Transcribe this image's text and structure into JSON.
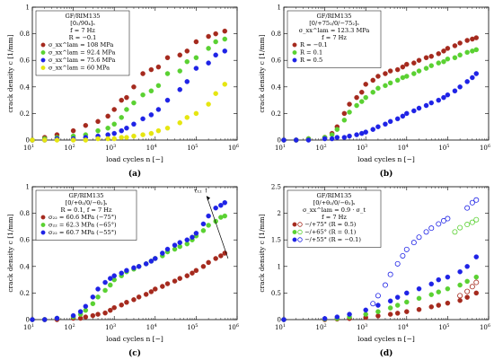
{
  "figure": {
    "xlabel_symbol": "load cycles n",
    "xlabel_unit": "[−]",
    "ylabel_symbol": "crack density c",
    "ylabel_unit": "[1/mm]"
  },
  "chart_data": [
    {
      "id": "a",
      "type": "scatter",
      "caption": "(a)",
      "xscale": "log",
      "xlim": [
        10,
        1000000
      ],
      "xticks": [
        "10^1",
        "10^2",
        "10^3",
        "10^4",
        "10^5",
        "10^6"
      ],
      "ylim": [
        0,
        1
      ],
      "yticks": [
        "0",
        "0.2",
        "0.4",
        "0.6",
        "0.8",
        "1"
      ],
      "grid": false,
      "legend_placement": "top-left",
      "legend_title": [
        "GF/RIM135",
        "[0₂/90₄]ₛ",
        "f = 7 Hz",
        "R = −0.1"
      ],
      "legend_items": [
        "σ_xx^lam = 108 MPa",
        "σ_xx^lam = 92.4 MPa",
        "σ_xx^lam = 75.6 MPa",
        "σ_xx^lam = 60 MPa"
      ],
      "series": [
        {
          "name": "σ_xx^lam = 108 MPa",
          "color": "#a52a1e",
          "filled": true,
          "x": [
            10,
            20,
            40,
            100,
            200,
            400,
            700,
            1000,
            1500,
            2000,
            3000,
            5000,
            8000,
            12000,
            20000,
            40000,
            60000,
            100000,
            200000,
            300000,
            500000
          ],
          "y": [
            0,
            0.02,
            0.04,
            0.07,
            0.11,
            0.14,
            0.18,
            0.23,
            0.3,
            0.32,
            0.4,
            0.5,
            0.53,
            0.55,
            0.62,
            0.64,
            0.67,
            0.74,
            0.78,
            0.8,
            0.82
          ]
        },
        {
          "name": "σ_xx^lam = 92.4 MPa",
          "color": "#5ad132",
          "filled": true,
          "x": [
            10,
            20,
            40,
            100,
            200,
            400,
            700,
            1000,
            1500,
            2000,
            3000,
            5000,
            8000,
            12000,
            20000,
            40000,
            60000,
            100000,
            200000,
            300000,
            500000
          ],
          "y": [
            0,
            0.01,
            0.02,
            0.03,
            0.04,
            0.07,
            0.09,
            0.12,
            0.17,
            0.23,
            0.28,
            0.34,
            0.37,
            0.41,
            0.5,
            0.52,
            0.59,
            0.62,
            0.69,
            0.74,
            0.76
          ]
        },
        {
          "name": "σ_xx^lam = 75.6 MPa",
          "color": "#1f23e6",
          "filled": true,
          "x": [
            10,
            20,
            40,
            100,
            200,
            400,
            700,
            1000,
            1500,
            2000,
            3000,
            5000,
            8000,
            12000,
            20000,
            40000,
            60000,
            100000,
            200000,
            300000,
            500000
          ],
          "y": [
            0,
            0,
            0.01,
            0.01,
            0.02,
            0.03,
            0.04,
            0.05,
            0.07,
            0.09,
            0.12,
            0.16,
            0.19,
            0.23,
            0.3,
            0.38,
            0.44,
            0.54,
            0.58,
            0.64,
            0.67
          ]
        },
        {
          "name": "σ_xx^lam = 60 MPa",
          "color": "#e6e610",
          "filled": true,
          "x": [
            10,
            20,
            40,
            100,
            200,
            400,
            700,
            1000,
            1500,
            2000,
            3000,
            5000,
            8000,
            12000,
            20000,
            40000,
            60000,
            100000,
            200000,
            300000,
            500000
          ],
          "y": [
            0,
            0,
            0,
            0,
            0,
            0.01,
            0.01,
            0.01,
            0.02,
            0.02,
            0.03,
            0.04,
            0.05,
            0.07,
            0.09,
            0.13,
            0.17,
            0.2,
            0.27,
            0.35,
            0.42
          ]
        }
      ]
    },
    {
      "id": "b",
      "type": "scatter",
      "caption": "(b)",
      "xscale": "log",
      "xlim": [
        10,
        1000000
      ],
      "xticks": [
        "10^1",
        "10^2",
        "10^3",
        "10^4",
        "10^5",
        "10^6"
      ],
      "ylim": [
        0,
        1
      ],
      "yticks": [
        "0",
        "0.2",
        "0.4",
        "0.6",
        "0.8",
        "1"
      ],
      "grid": false,
      "legend_placement": "top-left",
      "legend_title": [
        "GF/RIM135",
        "[0/+75₂/0/−75₂]ₛ",
        "σ_xx^lam = 123.3 MPa",
        "f = 7 Hz"
      ],
      "legend_items": [
        "R = −0.1",
        "R = 0.1",
        "R = 0.5"
      ],
      "series": [
        {
          "name": "R = −0.1",
          "color": "#a52a1e",
          "filled": true,
          "x": [
            10,
            20,
            40,
            100,
            150,
            200,
            300,
            400,
            600,
            800,
            1000,
            1500,
            2000,
            3000,
            4000,
            6000,
            8000,
            10000,
            15000,
            20000,
            30000,
            40000,
            60000,
            80000,
            100000,
            150000,
            200000,
            300000,
            400000,
            500000
          ],
          "y": [
            0,
            0,
            0.01,
            0.02,
            0.05,
            0.1,
            0.2,
            0.27,
            0.32,
            0.36,
            0.42,
            0.45,
            0.48,
            0.5,
            0.52,
            0.53,
            0.55,
            0.57,
            0.58,
            0.6,
            0.62,
            0.63,
            0.65,
            0.67,
            0.69,
            0.71,
            0.73,
            0.75,
            0.76,
            0.77
          ]
        },
        {
          "name": "R = 0.1",
          "color": "#5ad132",
          "filled": true,
          "x": [
            10,
            20,
            40,
            100,
            150,
            200,
            300,
            400,
            600,
            800,
            1000,
            1500,
            2000,
            3000,
            4000,
            6000,
            8000,
            10000,
            15000,
            20000,
            30000,
            40000,
            60000,
            80000,
            100000,
            150000,
            200000,
            300000,
            400000,
            500000
          ],
          "y": [
            0,
            0,
            0.01,
            0.02,
            0.04,
            0.08,
            0.15,
            0.21,
            0.26,
            0.29,
            0.32,
            0.36,
            0.39,
            0.41,
            0.43,
            0.45,
            0.47,
            0.48,
            0.5,
            0.52,
            0.54,
            0.56,
            0.58,
            0.59,
            0.61,
            0.62,
            0.64,
            0.66,
            0.67,
            0.68
          ]
        },
        {
          "name": "R = 0.5",
          "color": "#1f23e6",
          "filled": true,
          "x": [
            10,
            20,
            40,
            100,
            150,
            200,
            300,
            400,
            600,
            800,
            1000,
            1500,
            2000,
            3000,
            4000,
            6000,
            8000,
            10000,
            15000,
            20000,
            30000,
            40000,
            60000,
            80000,
            100000,
            150000,
            200000,
            300000,
            400000,
            500000
          ],
          "y": [
            0,
            0,
            0,
            0.01,
            0.01,
            0.02,
            0.02,
            0.03,
            0.04,
            0.05,
            0.06,
            0.08,
            0.1,
            0.12,
            0.14,
            0.16,
            0.18,
            0.2,
            0.22,
            0.24,
            0.26,
            0.28,
            0.3,
            0.32,
            0.34,
            0.37,
            0.4,
            0.44,
            0.47,
            0.5
          ]
        }
      ]
    },
    {
      "id": "c",
      "type": "scatter",
      "caption": "(c)",
      "xscale": "log",
      "xlim": [
        10,
        1000000
      ],
      "xticks": [
        "10^1",
        "10^2",
        "10^3",
        "10^4",
        "10^5",
        "10^6"
      ],
      "ylim": [
        0,
        1
      ],
      "yticks": [
        "0",
        "0.2",
        "0.4",
        "0.6",
        "0.8",
        "1"
      ],
      "grid": false,
      "legend_placement": "top-left",
      "legend_title": [
        "GF/RIM135",
        "[0/+θ₂/0/−θ₂]ₛ",
        "R = 0.1, f = 7 Hz"
      ],
      "legend_items": [
        "σ₂₂ = 60.6 MPa (−75°)",
        "σ₂₂ = 62.3 MPa (−65°)",
        "σ₂₂ = 60.7 MPa (−55°)"
      ],
      "annotation": "τ₁₂ ↑",
      "series": [
        {
          "name": "σ₂₂ = 60.6 MPa (−75°)",
          "color": "#a52a1e",
          "filled": true,
          "x": [
            10,
            20,
            40,
            100,
            150,
            200,
            300,
            400,
            600,
            800,
            1000,
            1500,
            2000,
            3000,
            4000,
            6000,
            8000,
            10000,
            15000,
            20000,
            30000,
            40000,
            60000,
            80000,
            100000,
            150000,
            200000,
            300000,
            400000,
            500000
          ],
          "y": [
            0,
            0,
            0,
            0.01,
            0.01,
            0.02,
            0.03,
            0.04,
            0.05,
            0.07,
            0.09,
            0.11,
            0.13,
            0.15,
            0.17,
            0.19,
            0.21,
            0.23,
            0.25,
            0.27,
            0.29,
            0.31,
            0.33,
            0.35,
            0.37,
            0.4,
            0.43,
            0.46,
            0.48,
            0.5
          ]
        },
        {
          "name": "σ₂₂ = 62.3 MPa (−65°)",
          "color": "#5ad132",
          "filled": true,
          "x": [
            10,
            20,
            40,
            100,
            150,
            200,
            300,
            400,
            600,
            800,
            1000,
            1500,
            2000,
            3000,
            4000,
            6000,
            8000,
            10000,
            15000,
            20000,
            30000,
            40000,
            60000,
            80000,
            100000,
            150000,
            200000,
            300000,
            400000,
            500000
          ],
          "y": [
            0,
            0,
            0.01,
            0.02,
            0.04,
            0.07,
            0.12,
            0.17,
            0.22,
            0.26,
            0.3,
            0.33,
            0.36,
            0.38,
            0.4,
            0.42,
            0.44,
            0.46,
            0.48,
            0.51,
            0.53,
            0.55,
            0.57,
            0.6,
            0.63,
            0.67,
            0.71,
            0.74,
            0.77,
            0.78
          ]
        },
        {
          "name": "σ₂₂ = 60.7 MPa (−55°)",
          "color": "#1f23e6",
          "filled": true,
          "x": [
            10,
            20,
            40,
            100,
            150,
            200,
            300,
            400,
            600,
            800,
            1000,
            1500,
            2000,
            3000,
            4000,
            6000,
            8000,
            10000,
            15000,
            20000,
            30000,
            40000,
            60000,
            80000,
            100000,
            150000,
            200000,
            300000,
            400000,
            500000
          ],
          "y": [
            0,
            0,
            0.01,
            0.03,
            0.06,
            0.1,
            0.17,
            0.23,
            0.28,
            0.31,
            0.33,
            0.35,
            0.37,
            0.39,
            0.4,
            0.42,
            0.44,
            0.46,
            0.5,
            0.53,
            0.56,
            0.58,
            0.6,
            0.62,
            0.65,
            0.72,
            0.78,
            0.84,
            0.86,
            0.88
          ]
        }
      ]
    },
    {
      "id": "d",
      "type": "scatter",
      "caption": "(d)",
      "xscale": "log",
      "xlim": [
        10,
        1000000
      ],
      "xticks": [
        "10^1",
        "10^2",
        "10^3",
        "10^4",
        "10^5",
        "10^6"
      ],
      "ylim": [
        0,
        2.5
      ],
      "yticks": [
        "0",
        "0.5",
        "1",
        "1.5",
        "2",
        "2.5"
      ],
      "grid": false,
      "legend_placement": "top-left",
      "legend_title": [
        "GF/RIM135",
        "[0/+θ₂/0/−θ₂]ₛ",
        "σ_xx^lam = 0.9 · σ_t",
        "f = 7 Hz"
      ],
      "legend_items": [
        "−/+75° (R = 0.5)",
        "−/+65° (R = 0.1)",
        "−/+55° (R = −0.1)"
      ],
      "series": [
        {
          "name": "−/+75° (R = 0.5) solid",
          "color": "#a52a1e",
          "filled": true,
          "x": [
            10,
            100,
            200,
            400,
            1000,
            2000,
            4000,
            6000,
            10000,
            20000,
            40000,
            60000,
            100000,
            200000,
            300000,
            500000
          ],
          "y": [
            0,
            0,
            0.01,
            0.02,
            0.04,
            0.07,
            0.1,
            0.12,
            0.15,
            0.19,
            0.24,
            0.27,
            0.31,
            0.36,
            0.42,
            0.5
          ]
        },
        {
          "name": "−/+75° (R = 0.5) open",
          "color": "#a52a1e",
          "filled": false,
          "x": [
            200000,
            300000,
            400000,
            500000
          ],
          "y": [
            0.45,
            0.53,
            0.62,
            0.7
          ]
        },
        {
          "name": "−/+65° (R = 0.1) solid",
          "color": "#5ad132",
          "filled": true,
          "x": [
            10,
            100,
            200,
            400,
            1000,
            2000,
            4000,
            6000,
            10000,
            20000,
            40000,
            60000,
            100000,
            200000,
            300000,
            500000
          ],
          "y": [
            0,
            0.01,
            0.02,
            0.05,
            0.1,
            0.15,
            0.22,
            0.27,
            0.33,
            0.4,
            0.47,
            0.52,
            0.58,
            0.65,
            0.72,
            0.8
          ]
        },
        {
          "name": "−/+65° (R = 0.1) open",
          "color": "#5ad132",
          "filled": false,
          "x": [
            150000,
            200000,
            300000,
            400000,
            500000
          ],
          "y": [
            1.65,
            1.73,
            1.79,
            1.83,
            1.88
          ]
        },
        {
          "name": "−/+55° (R = −0.1) solid",
          "color": "#1f23e6",
          "filled": true,
          "x": [
            10,
            100,
            200,
            400,
            1000,
            2000,
            4000,
            6000,
            10000,
            20000,
            40000,
            60000,
            100000,
            200000,
            300000,
            500000
          ],
          "y": [
            0,
            0.02,
            0.05,
            0.1,
            0.18,
            0.27,
            0.35,
            0.42,
            0.5,
            0.58,
            0.67,
            0.75,
            0.8,
            0.9,
            1.0,
            1.18
          ]
        },
        {
          "name": "−/+55° (R = −0.1) open",
          "color": "#1f23e6",
          "filled": false,
          "x": [
            1500,
            2000,
            3000,
            4000,
            6000,
            8000,
            10000,
            15000,
            20000,
            30000,
            40000,
            60000,
            80000,
            100000,
            300000,
            400000,
            500000
          ],
          "y": [
            0.3,
            0.45,
            0.65,
            0.85,
            1.05,
            1.2,
            1.32,
            1.45,
            1.55,
            1.65,
            1.72,
            1.8,
            1.86,
            1.9,
            2.1,
            2.2,
            2.25
          ]
        }
      ]
    }
  ]
}
